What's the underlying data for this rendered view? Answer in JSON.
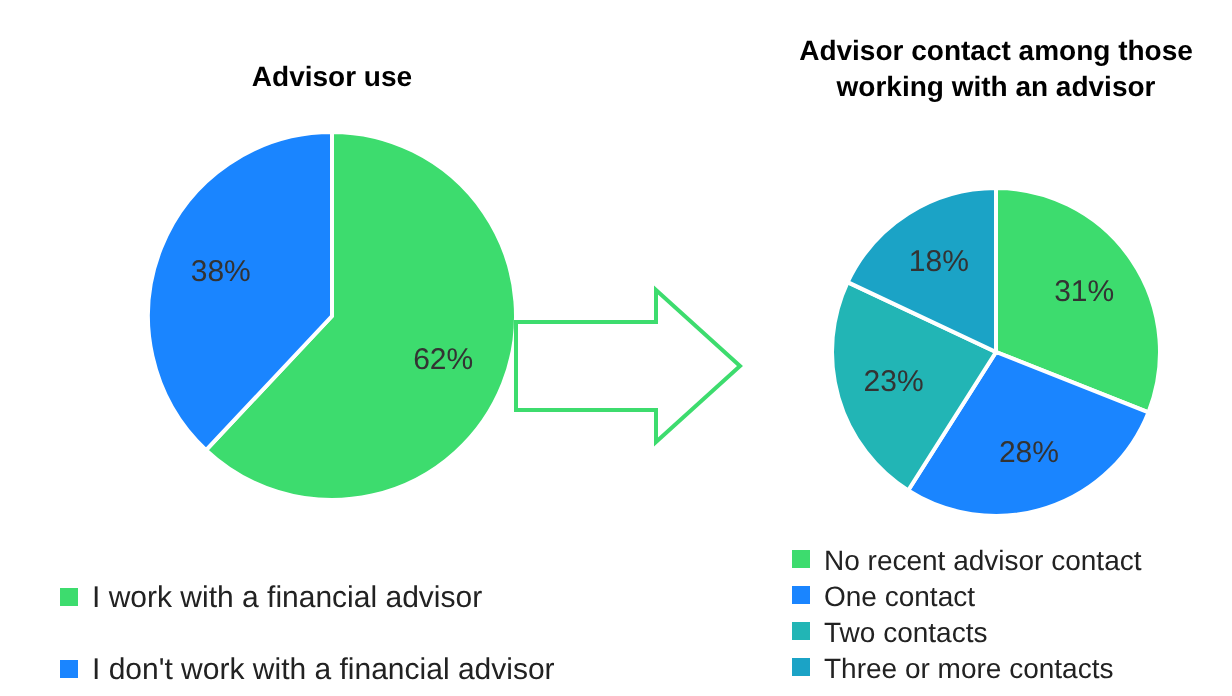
{
  "chart_data": [
    {
      "type": "pie",
      "title": "Advisor use",
      "categories": [
        "I work with a financial advisor",
        "I don't work with a financial advisor"
      ],
      "values": [
        62,
        38
      ],
      "colors": [
        "#3ddc6e",
        "#1a85ff"
      ],
      "value_labels": [
        "62%",
        "38%"
      ],
      "legend": "bottom"
    },
    {
      "type": "pie",
      "title": "Advisor contact among those working with an advisor",
      "categories": [
        "No recent advisor contact",
        "One contact",
        "Two contacts",
        "Three or more contacts"
      ],
      "values": [
        31,
        28,
        23,
        18
      ],
      "colors": [
        "#3ddc6e",
        "#1a85ff",
        "#22b5b5",
        "#1ba3c6"
      ],
      "value_labels": [
        "31%",
        "28%",
        "23%",
        "18%"
      ],
      "legend": "bottom"
    }
  ]
}
